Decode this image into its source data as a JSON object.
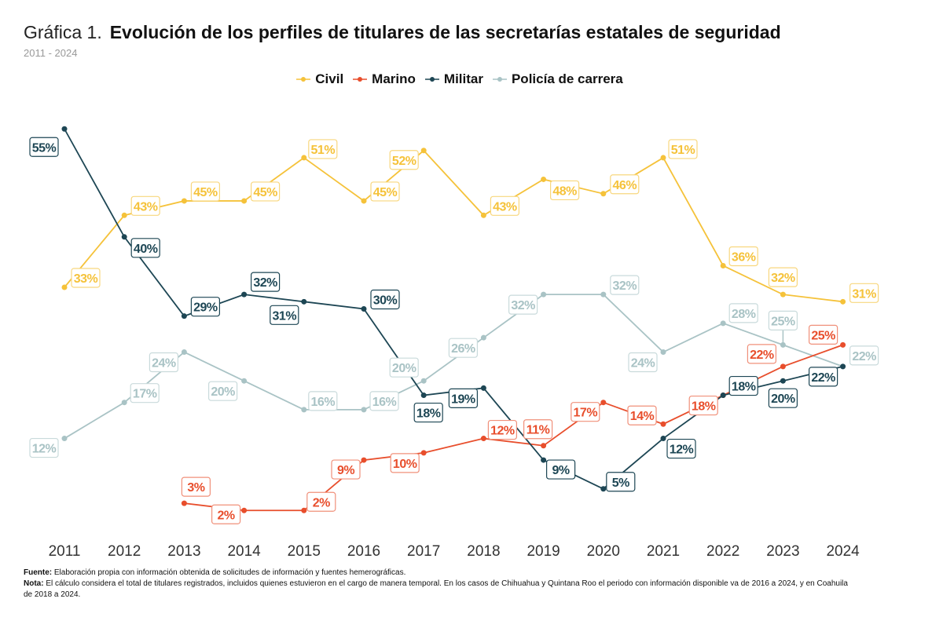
{
  "title": {
    "prefix": "Gráfica 1.",
    "main": "Evolución de los perfiles de titulares de las secretarías estatales de seguridad",
    "subtitle": "2011 - 2024"
  },
  "chart_data": {
    "type": "line",
    "categories": [
      "2011",
      "2012",
      "2013",
      "2014",
      "2015",
      "2016",
      "2017",
      "2018",
      "2019",
      "2020",
      "2021",
      "2022",
      "2023",
      "2024"
    ],
    "ylim": [
      0,
      60
    ],
    "grid": false,
    "legend_position": "top-center",
    "unit": "%",
    "series": [
      {
        "name": "Civil",
        "color": "#f5c23a",
        "values": [
          33,
          43,
          45,
          45,
          51,
          45,
          52,
          43,
          48,
          46,
          51,
          36,
          32,
          31
        ]
      },
      {
        "name": "Marino",
        "color": "#e84e2c",
        "values": [
          null,
          null,
          3,
          2,
          2,
          9,
          10,
          12,
          11,
          17,
          14,
          18,
          22,
          25
        ]
      },
      {
        "name": "Militar",
        "color": "#1d4654",
        "values": [
          55,
          40,
          29,
          32,
          31,
          30,
          18,
          19,
          9,
          5,
          12,
          18,
          20,
          22
        ]
      },
      {
        "name": "Policía de carrera",
        "color": "#a9c3c5",
        "values": [
          12,
          17,
          24,
          20,
          16,
          16,
          20,
          26,
          32,
          32,
          24,
          28,
          25,
          22
        ]
      }
    ]
  },
  "notes": {
    "source_label": "Fuente:",
    "source": "Elaboración propia con información obtenida de solicitudes de información y fuentes hemerográficas.",
    "note_label": "Nota:",
    "note": "El cálculo considera el total de titulares registrados, incluidos quienes estuvieron en el cargo de manera temporal. En los casos de Chihuahua y Quintana Roo el periodo con información disponible va de 2016 a 2024, y en Coahuila de 2018 a 2024."
  }
}
